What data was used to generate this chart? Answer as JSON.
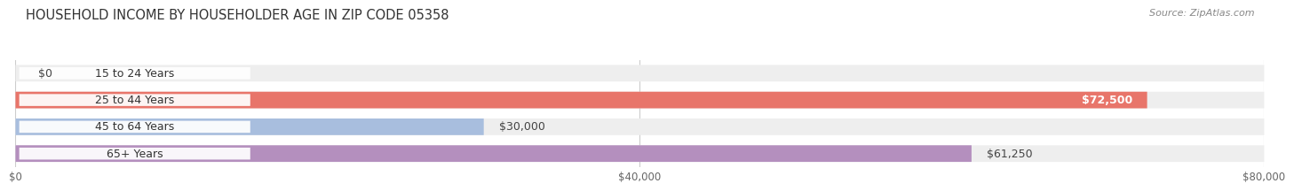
{
  "title": "HOUSEHOLD INCOME BY HOUSEHOLDER AGE IN ZIP CODE 05358",
  "source": "Source: ZipAtlas.com",
  "categories": [
    "15 to 24 Years",
    "25 to 44 Years",
    "45 to 64 Years",
    "65+ Years"
  ],
  "values": [
    0,
    72500,
    30000,
    61250
  ],
  "labels": [
    "$0",
    "$72,500",
    "$30,000",
    "$61,250"
  ],
  "bar_colors": [
    "#f5c8a0",
    "#e8756a",
    "#a8bede",
    "#b48fbe"
  ],
  "xmax": 80000,
  "xticks": [
    0,
    40000,
    80000
  ],
  "xticklabels": [
    "$0",
    "$40,000",
    "$80,000"
  ],
  "title_fontsize": 10.5,
  "source_fontsize": 8,
  "label_fontsize": 9,
  "category_fontsize": 9,
  "background_color": "#ffffff",
  "bar_bg_color": "#eeeeee"
}
